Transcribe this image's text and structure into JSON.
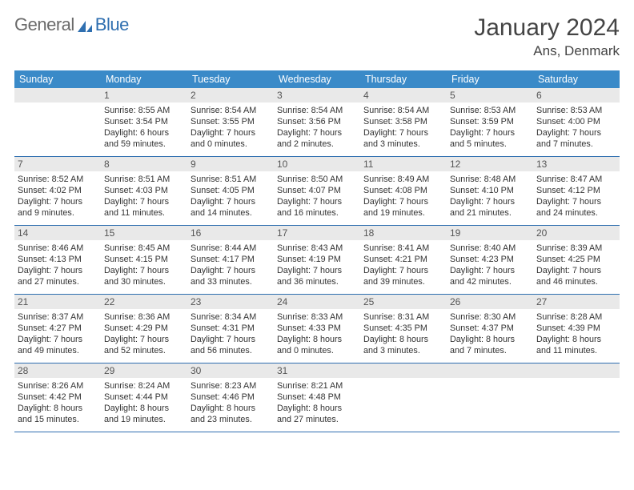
{
  "brand": {
    "part1": "General",
    "part2": "Blue"
  },
  "title": "January 2024",
  "location": "Ans, Denmark",
  "colors": {
    "header_bg": "#3a8ac8",
    "header_text": "#ffffff",
    "rule": "#2f6fb0",
    "daynum_bg": "#e9e9e9",
    "daynum_text": "#555555",
    "body_text": "#333333",
    "brand_gray": "#6a6a6a",
    "brand_blue": "#2f6fb0",
    "page_bg": "#ffffff"
  },
  "layout": {
    "columns": 7,
    "rows": 5,
    "start_offset": 1
  },
  "dow": [
    "Sunday",
    "Monday",
    "Tuesday",
    "Wednesday",
    "Thursday",
    "Friday",
    "Saturday"
  ],
  "days": [
    {
      "n": 1,
      "sunrise": "8:55 AM",
      "sunset": "3:54 PM",
      "daylight": "6 hours and 59 minutes."
    },
    {
      "n": 2,
      "sunrise": "8:54 AM",
      "sunset": "3:55 PM",
      "daylight": "7 hours and 0 minutes."
    },
    {
      "n": 3,
      "sunrise": "8:54 AM",
      "sunset": "3:56 PM",
      "daylight": "7 hours and 2 minutes."
    },
    {
      "n": 4,
      "sunrise": "8:54 AM",
      "sunset": "3:58 PM",
      "daylight": "7 hours and 3 minutes."
    },
    {
      "n": 5,
      "sunrise": "8:53 AM",
      "sunset": "3:59 PM",
      "daylight": "7 hours and 5 minutes."
    },
    {
      "n": 6,
      "sunrise": "8:53 AM",
      "sunset": "4:00 PM",
      "daylight": "7 hours and 7 minutes."
    },
    {
      "n": 7,
      "sunrise": "8:52 AM",
      "sunset": "4:02 PM",
      "daylight": "7 hours and 9 minutes."
    },
    {
      "n": 8,
      "sunrise": "8:51 AM",
      "sunset": "4:03 PM",
      "daylight": "7 hours and 11 minutes."
    },
    {
      "n": 9,
      "sunrise": "8:51 AM",
      "sunset": "4:05 PM",
      "daylight": "7 hours and 14 minutes."
    },
    {
      "n": 10,
      "sunrise": "8:50 AM",
      "sunset": "4:07 PM",
      "daylight": "7 hours and 16 minutes."
    },
    {
      "n": 11,
      "sunrise": "8:49 AM",
      "sunset": "4:08 PM",
      "daylight": "7 hours and 19 minutes."
    },
    {
      "n": 12,
      "sunrise": "8:48 AM",
      "sunset": "4:10 PM",
      "daylight": "7 hours and 21 minutes."
    },
    {
      "n": 13,
      "sunrise": "8:47 AM",
      "sunset": "4:12 PM",
      "daylight": "7 hours and 24 minutes."
    },
    {
      "n": 14,
      "sunrise": "8:46 AM",
      "sunset": "4:13 PM",
      "daylight": "7 hours and 27 minutes."
    },
    {
      "n": 15,
      "sunrise": "8:45 AM",
      "sunset": "4:15 PM",
      "daylight": "7 hours and 30 minutes."
    },
    {
      "n": 16,
      "sunrise": "8:44 AM",
      "sunset": "4:17 PM",
      "daylight": "7 hours and 33 minutes."
    },
    {
      "n": 17,
      "sunrise": "8:43 AM",
      "sunset": "4:19 PM",
      "daylight": "7 hours and 36 minutes."
    },
    {
      "n": 18,
      "sunrise": "8:41 AM",
      "sunset": "4:21 PM",
      "daylight": "7 hours and 39 minutes."
    },
    {
      "n": 19,
      "sunrise": "8:40 AM",
      "sunset": "4:23 PM",
      "daylight": "7 hours and 42 minutes."
    },
    {
      "n": 20,
      "sunrise": "8:39 AM",
      "sunset": "4:25 PM",
      "daylight": "7 hours and 46 minutes."
    },
    {
      "n": 21,
      "sunrise": "8:37 AM",
      "sunset": "4:27 PM",
      "daylight": "7 hours and 49 minutes."
    },
    {
      "n": 22,
      "sunrise": "8:36 AM",
      "sunset": "4:29 PM",
      "daylight": "7 hours and 52 minutes."
    },
    {
      "n": 23,
      "sunrise": "8:34 AM",
      "sunset": "4:31 PM",
      "daylight": "7 hours and 56 minutes."
    },
    {
      "n": 24,
      "sunrise": "8:33 AM",
      "sunset": "4:33 PM",
      "daylight": "8 hours and 0 minutes."
    },
    {
      "n": 25,
      "sunrise": "8:31 AM",
      "sunset": "4:35 PM",
      "daylight": "8 hours and 3 minutes."
    },
    {
      "n": 26,
      "sunrise": "8:30 AM",
      "sunset": "4:37 PM",
      "daylight": "8 hours and 7 minutes."
    },
    {
      "n": 27,
      "sunrise": "8:28 AM",
      "sunset": "4:39 PM",
      "daylight": "8 hours and 11 minutes."
    },
    {
      "n": 28,
      "sunrise": "8:26 AM",
      "sunset": "4:42 PM",
      "daylight": "8 hours and 15 minutes."
    },
    {
      "n": 29,
      "sunrise": "8:24 AM",
      "sunset": "4:44 PM",
      "daylight": "8 hours and 19 minutes."
    },
    {
      "n": 30,
      "sunrise": "8:23 AM",
      "sunset": "4:46 PM",
      "daylight": "8 hours and 23 minutes."
    },
    {
      "n": 31,
      "sunrise": "8:21 AM",
      "sunset": "4:48 PM",
      "daylight": "8 hours and 27 minutes."
    }
  ],
  "labels": {
    "sunrise": "Sunrise:",
    "sunset": "Sunset:",
    "daylight": "Daylight:"
  }
}
